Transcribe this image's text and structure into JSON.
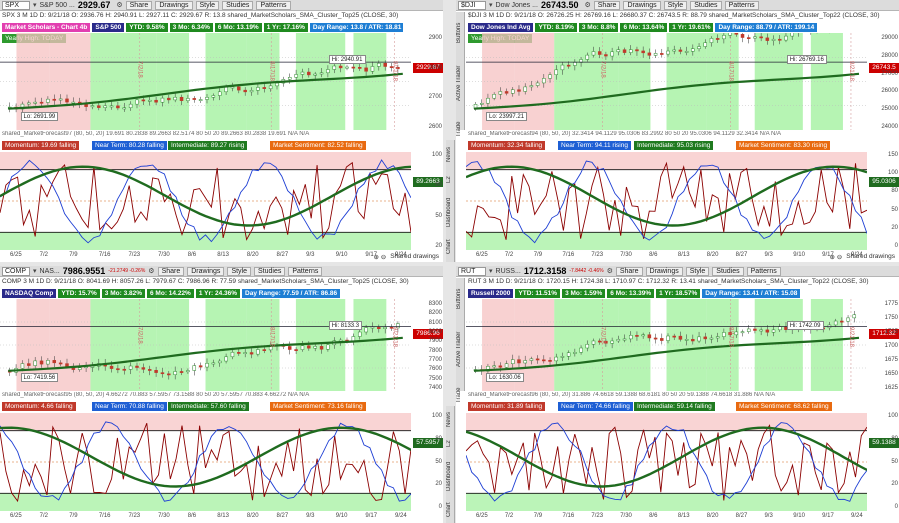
{
  "panels": [
    {
      "id": "spx",
      "symbol": "SPX",
      "desc": "S&P 500 ...",
      "last": "2929.67",
      "change": "",
      "ohlc": "SPX 3 M 1D   D: 9/21/18   O: 2936.76   H: 2940.91   L: 2927.11   C: 2929.67   R: 13.8   shared_MarketScholars_SMA_Cluster_Top25 (CLOSE, 30)",
      "badges": [
        {
          "text": "Market Scholars - Chart 4b",
          "color": "#e23fb0"
        },
        {
          "text": "S&P 500",
          "color": "#2a2a8a"
        },
        {
          "text": "YTD: 9.58%",
          "color": "#1f8a1f"
        },
        {
          "text": "3 Mo: 6.34%",
          "color": "#1f8a1f"
        },
        {
          "text": "6 Mo: 13.19%",
          "color": "#1f8a1f"
        },
        {
          "text": "1 Yr: 17.16%",
          "color": "#1f8a1f"
        },
        {
          "text": "Day Range: 13.8 / ATR: 18.81",
          "color": "#1e7ed4"
        }
      ],
      "yearly_high": "Yearly High: TODAY",
      "hi_label": "Hi: 2940.91",
      "lo_label": "Lo: 2691.99",
      "price_tag": "2929.67",
      "y_ticks": [
        "2900",
        "2800",
        "2700",
        "2600"
      ],
      "date_marks": [
        "7/2/18",
        "8/17/18",
        "9/21/18"
      ],
      "indicator_header": "shared_MarketForecast97 (80, 50, 20)   19.691   80.2838   89.2663   82.5174   80   50   20   89.2663   80.2838   19.691   N/A   N/A",
      "ind_badges": [
        {
          "text": "Momentum: 19.69  falling",
          "color": "#c0392b"
        },
        {
          "text": "Near Term: 80.28  falling",
          "color": "#1e5fd4"
        },
        {
          "text": "Intermediate: 89.27  rising",
          "color": "#1f7a1f"
        },
        {
          "text": "Market Sentiment: 82.52  falling",
          "color": "#e86a10"
        }
      ],
      "ind_tag": "89.2663",
      "ind_ticks": [
        "100",
        "80",
        "50",
        "20"
      ],
      "x_ticks": [
        "6/25",
        "7/2",
        "7/9",
        "7/16",
        "7/23",
        "7/30",
        "8/6",
        "8/13",
        "8/20",
        "8/27",
        "9/3",
        "9/10",
        "9/17",
        "9/24"
      ],
      "footer": "Shared drawings",
      "side_tabs": []
    },
    {
      "id": "djia",
      "symbol": "$DJI",
      "desc": "Dow Jones ...",
      "last": "26743.50",
      "change": "",
      "ohlc": "$DJI 3 M 1D   D: 9/21/18   O: 26726.25   H: 26769.16   L: 26680.37   C: 26743.5   R: 88.79   shared_MarketScholars_SMA_Cluster_Top22 (CLOSE, 30)",
      "badges": [
        {
          "text": "Dow Jones Ind Avg",
          "color": "#2a2a8a"
        },
        {
          "text": "YTD: 8.19%",
          "color": "#1f8a1f"
        },
        {
          "text": "3 Mo: 8.8%",
          "color": "#1f8a1f"
        },
        {
          "text": "6 Mo: 13.64%",
          "color": "#1f8a1f"
        },
        {
          "text": "1 Yr: 19.61%",
          "color": "#1f8a1f"
        },
        {
          "text": "Day Range: 88.79 / ATR: 199.14",
          "color": "#1e7ed4"
        }
      ],
      "yearly_high": "Yearly High: TODAY",
      "hi_label": "Hi: 26769.16",
      "lo_label": "Lo: 23997.21",
      "price_tag": "26743.5",
      "y_ticks": [
        "29000",
        "28000",
        "27000",
        "26000",
        "25000",
        "24000"
      ],
      "date_marks": [
        "7/2/18",
        "8/17/18",
        "9/21/18"
      ],
      "indicator_header": "shared_MarketForecast94 (80, 50, 20)   32.3414   94.1129   95.0306   83.2992   80   50   20   95.0306   94.1129   32.3414   N/A   N/A",
      "ind_badges": [
        {
          "text": "Momentum: 32.34  falling",
          "color": "#c0392b"
        },
        {
          "text": "Near Term: 94.11  rising",
          "color": "#1e5fd4"
        },
        {
          "text": "Intermediate: 95.03  rising",
          "color": "#1f7a1f"
        },
        {
          "text": "Market Sentiment: 83.30  rising",
          "color": "#e86a10"
        }
      ],
      "ind_tag": "95.0306",
      "ind_ticks": [
        "150",
        "100",
        "80",
        "50",
        "20",
        "0"
      ],
      "x_ticks": [
        "6/25",
        "7/2",
        "7/9",
        "7/16",
        "7/23",
        "7/30",
        "8/6",
        "8/13",
        "8/20",
        "8/27",
        "9/3",
        "9/10",
        "9/17",
        "9/24"
      ],
      "footer": "Shared drawings",
      "side_tabs": [
        "Buttons",
        "Active Trader",
        "Trade"
      ]
    },
    {
      "id": "comp",
      "symbol": "COMP",
      "desc": "NAS...",
      "last": "7986.9551",
      "change": "-21.2749 -0.26%",
      "ohlc": "COMP 3 M 1D   D: 9/21/18   O: 8041.69   H: 8057.26   L: 7979.67   C: 7986.96   R: 77.59   shared_MarketScholars_SMA_Cluster_Top25 (CLOSE, 30)",
      "badges": [
        {
          "text": "NASDAQ Comp",
          "color": "#2a2a8a"
        },
        {
          "text": "YTD: 15.7%",
          "color": "#1f8a1f"
        },
        {
          "text": "3 Mo: 3.82%",
          "color": "#1f8a1f"
        },
        {
          "text": "6 Mo: 14.22%",
          "color": "#1f8a1f"
        },
        {
          "text": "1 Yr: 24.36%",
          "color": "#1f8a1f"
        },
        {
          "text": "Day Range: 77.59 / ATR: 86.86",
          "color": "#1e7ed4"
        }
      ],
      "yearly_high": "",
      "hi_label": "Hi: 8133.3",
      "lo_label": "Lo: 7419.56",
      "price_tag": "7986.96",
      "y_ticks": [
        "8300",
        "8200",
        "8100",
        "8000",
        "7900",
        "7800",
        "7700",
        "7600",
        "7500",
        "7400"
      ],
      "date_marks": [
        "7/2/18",
        "8/17/18",
        "9/21/18"
      ],
      "indicator_header": "shared_MarketForecast95 (80, 50, 20)   4.66272   70.883   57.5957   73.1588   80   50   20   57.5957   70.883   4.66272   N/A   N/A",
      "ind_badges": [
        {
          "text": "Momentum: 4.66  falling",
          "color": "#c0392b"
        },
        {
          "text": "Near Term: 70.88  falling",
          "color": "#1e5fd4"
        },
        {
          "text": "Intermediate: 57.60  falling",
          "color": "#1f7a1f"
        },
        {
          "text": "Market Sentiment: 73.16  falling",
          "color": "#e86a10"
        }
      ],
      "ind_tag": "57.5957",
      "ind_ticks": [
        "100",
        "80",
        "50",
        "20",
        "0"
      ],
      "x_ticks": [
        "6/25",
        "7/2",
        "7/9",
        "7/16",
        "7/23",
        "7/30",
        "8/6",
        "8/13",
        "8/20",
        "8/27",
        "9/3",
        "9/10",
        "9/17",
        "9/24"
      ],
      "footer": "",
      "side_tabs": []
    },
    {
      "id": "rut",
      "symbol": "RUT",
      "desc": "RUSS...",
      "last": "1712.3158",
      "change": "-7.8442 -0.46%",
      "ohlc": "RUT 3 M 1D   D: 9/21/18   O: 1720.15   H: 1724.38   L: 1710.97   C: 1712.32   R: 13.41   shared_MarketScholars_SMA_Cluster_Top22 (CLOSE, 30)",
      "badges": [
        {
          "text": "Russell 2000",
          "color": "#2a2a8a"
        },
        {
          "text": "YTD: 11.51%",
          "color": "#1f8a1f"
        },
        {
          "text": "3 Mo: 1.59%",
          "color": "#1f8a1f"
        },
        {
          "text": "6 Mo: 13.39%",
          "color": "#1f8a1f"
        },
        {
          "text": "1 Yr: 18.57%",
          "color": "#1f8a1f"
        },
        {
          "text": "Day Range: 13.41 / ATR: 15.08",
          "color": "#1e7ed4"
        }
      ],
      "yearly_high": "",
      "hi_label": "Hi: 1742.09",
      "lo_label": "Lo: 1630.06",
      "price_tag": "1712.32",
      "y_ticks": [
        "1775",
        "1750",
        "1725",
        "1700",
        "1675",
        "1650",
        "1625"
      ],
      "date_marks": [
        "7/2/18",
        "8/17/18",
        "9/21/18"
      ],
      "indicator_header": "shared_MarketForecast96 (80, 50, 20)   31.886   74.6618   59.1388   68.6181   80   50   20   59.1388   74.6618   31.886   N/A   N/A",
      "ind_badges": [
        {
          "text": "Momentum: 31.89  falling",
          "color": "#c0392b"
        },
        {
          "text": "Near Term: 74.66  falling",
          "color": "#1e5fd4"
        },
        {
          "text": "Intermediate: 59.14  falling",
          "color": "#1f7a1f"
        },
        {
          "text": "Market Sentiment: 68.62  falling",
          "color": "#e86a10"
        }
      ],
      "ind_tag": "59.1388",
      "ind_ticks": [
        "100",
        "80",
        "50",
        "20",
        "0"
      ],
      "x_ticks": [
        "6/25",
        "7/2",
        "7/9",
        "7/16",
        "7/23",
        "7/30",
        "8/6",
        "8/13",
        "8/20",
        "8/27",
        "9/3",
        "9/10",
        "9/17",
        "9/24"
      ],
      "footer": "",
      "side_tabs": [
        "Buttons",
        "Active Trader",
        "Trade"
      ]
    }
  ],
  "left_tabs": [
    "News",
    "L2",
    "Dashboard",
    "Chart"
  ],
  "toolbar": {
    "share": "Share",
    "drawings": "Drawings",
    "style": "Style",
    "studies": "Studies",
    "patterns": "Patterns"
  },
  "colors": {
    "candle_up": "#2d8a2d",
    "candle_down": "#c0392b",
    "ma": "#1f6b1f",
    "green_zone": "#9ef09a",
    "red_zone": "#f6c2c2"
  }
}
